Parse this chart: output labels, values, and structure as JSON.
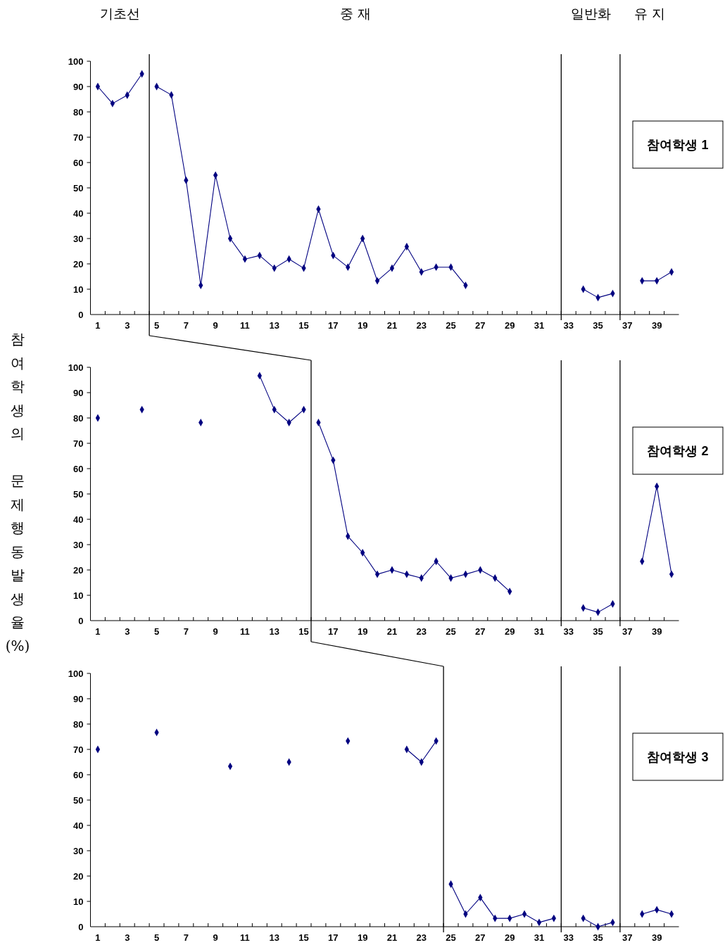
{
  "chart_data": [
    {
      "type": "line",
      "title": "참여학생 1",
      "annotations": [
        "기초선",
        "중 재",
        "일반화",
        "유 지"
      ],
      "xlim": [
        0.5,
        40.5
      ],
      "xticks": [
        1,
        {
          "value": 1.5,
          "label": null
        },
        {
          "value": 2.5,
          "label": null
        },
        3,
        {
          "value": 3.5,
          "label": null
        },
        {
          "value": 4.5,
          "label": null
        },
        5,
        {
          "value": 5.5,
          "label": null
        },
        {
          "value": 6.5,
          "label": null
        },
        7,
        {
          "value": 7.5,
          "label": null
        },
        {
          "value": 8.5,
          "label": null
        },
        9,
        {
          "value": 9.5,
          "label": null
        },
        {
          "value": 10.5,
          "label": null
        },
        11,
        {
          "value": 11.5,
          "label": null
        },
        {
          "value": 12.5,
          "label": null
        },
        13,
        {
          "value": 13.5,
          "label": null
        },
        {
          "value": 14.5,
          "label": null
        },
        15,
        {
          "value": 15.5,
          "label": null
        },
        {
          "value": 16.5,
          "label": null
        },
        17,
        {
          "value": 17.5,
          "label": null
        },
        {
          "value": 18.5,
          "label": null
        },
        19,
        {
          "value": 19.5,
          "label": null
        },
        {
          "value": 20.5,
          "label": null
        },
        21,
        {
          "value": 21.5,
          "label": null
        },
        {
          "value": 22.5,
          "label": null
        },
        23,
        {
          "value": 23.5,
          "label": null
        },
        {
          "value": 24.5,
          "label": null
        },
        25,
        {
          "value": 25.5,
          "label": null
        },
        {
          "value": 26.5,
          "label": null
        },
        27,
        {
          "value": 27.5,
          "label": null
        },
        {
          "value": 28.5,
          "label": null
        },
        29,
        {
          "value": 29.5,
          "label": null
        },
        {
          "value": 30.5,
          "label": null
        },
        31,
        {
          "value": 31.5,
          "label": null
        },
        {
          "value": 32.5,
          "label": null
        },
        33,
        {
          "value": 33.5,
          "label": null
        },
        {
          "value": 34.5,
          "label": null
        },
        35,
        {
          "value": 35.5,
          "label": null
        },
        {
          "value": 36.5,
          "label": null
        },
        37,
        {
          "value": 37.5,
          "label": null
        },
        {
          "value": 38.5,
          "label": null
        },
        39,
        {
          "value": 39.5,
          "label": null
        }
      ],
      "ylim": [
        0,
        100
      ],
      "yticks": [
        0,
        10,
        20,
        30,
        40,
        50,
        60,
        70,
        80,
        90,
        100
      ],
      "marker": "diamond",
      "line_style": "solid",
      "ref_lines": [
        {
          "axis": "x",
          "value": 4.5
        },
        {
          "axis": "x",
          "value": 32.5
        },
        {
          "axis": "x",
          "value": 36.5
        }
      ],
      "series": [
        {
          "color": "#000080",
          "x": [
            1,
            2,
            3,
            4
          ],
          "values": [
            90,
            83.3,
            86.6,
            95
          ]
        },
        {
          "color": "#000080",
          "x": [
            5,
            6,
            7,
            8,
            9,
            10,
            11,
            12,
            13,
            14,
            15,
            16,
            17,
            18,
            19,
            20,
            21,
            22,
            23,
            24,
            25,
            26
          ],
          "values": [
            90,
            86.7,
            53,
            11.5,
            55,
            30,
            21.9,
            23.3,
            18.3,
            21.9,
            18.3,
            41.6,
            23.3,
            18.7,
            30,
            13.3,
            18.3,
            26.8,
            16.8,
            18.7,
            18.7,
            11.5
          ]
        },
        {
          "color": "#000080",
          "x": [
            34,
            35,
            36
          ],
          "values": [
            10,
            6.7,
            8.3
          ]
        },
        {
          "color": "#000080",
          "x": [
            38,
            39,
            40
          ],
          "values": [
            13.3,
            13.3,
            16.8
          ]
        }
      ]
    },
    {
      "type": "line",
      "title": "참여학생 2",
      "ylabel": "참여학생의 문제행동발생율(%)",
      "xlim": [
        0.5,
        40.5
      ],
      "xticks": [
        1,
        {
          "value": 1.5,
          "label": null
        },
        {
          "value": 2.5,
          "label": null
        },
        3,
        {
          "value": 3.5,
          "label": null
        },
        {
          "value": 4.5,
          "label": null
        },
        5,
        {
          "value": 5.5,
          "label": null
        },
        {
          "value": 6.5,
          "label": null
        },
        7,
        {
          "value": 7.5,
          "label": null
        },
        {
          "value": 8.5,
          "label": null
        },
        9,
        {
          "value": 9.5,
          "label": null
        },
        {
          "value": 10.5,
          "label": null
        },
        11,
        {
          "value": 11.5,
          "label": null
        },
        {
          "value": 12.5,
          "label": null
        },
        13,
        {
          "value": 13.5,
          "label": null
        },
        {
          "value": 14.5,
          "label": null
        },
        15,
        {
          "value": 15.5,
          "label": null
        },
        {
          "value": 16.5,
          "label": null
        },
        17,
        {
          "value": 17.5,
          "label": null
        },
        {
          "value": 18.5,
          "label": null
        },
        19,
        {
          "value": 19.5,
          "label": null
        },
        {
          "value": 20.5,
          "label": null
        },
        21,
        {
          "value": 21.5,
          "label": null
        },
        {
          "value": 22.5,
          "label": null
        },
        23,
        {
          "value": 23.5,
          "label": null
        },
        {
          "value": 24.5,
          "label": null
        },
        25,
        {
          "value": 25.5,
          "label": null
        },
        {
          "value": 26.5,
          "label": null
        },
        27,
        {
          "value": 27.5,
          "label": null
        },
        {
          "value": 28.5,
          "label": null
        },
        29,
        {
          "value": 29.5,
          "label": null
        },
        {
          "value": 30.5,
          "label": null
        },
        31,
        {
          "value": 31.5,
          "label": null
        },
        {
          "value": 32.5,
          "label": null
        },
        33,
        {
          "value": 33.5,
          "label": null
        },
        {
          "value": 34.5,
          "label": null
        },
        35,
        {
          "value": 35.5,
          "label": null
        },
        {
          "value": 36.5,
          "label": null
        },
        37,
        {
          "value": 37.5,
          "label": null
        },
        {
          "value": 38.5,
          "label": null
        },
        39,
        {
          "value": 39.5,
          "label": null
        }
      ],
      "ylim": [
        0,
        100
      ],
      "yticks": [
        0,
        10,
        20,
        30,
        40,
        50,
        60,
        70,
        80,
        90,
        100
      ],
      "marker": "diamond",
      "line_style": "solid",
      "ref_lines": [
        {
          "axis": "x",
          "value": 15.5
        },
        {
          "axis": "x",
          "value": 32.5
        },
        {
          "axis": "x",
          "value": 36.5
        }
      ],
      "series": [
        {
          "color": "#000080",
          "x": [
            1,
            2,
            3,
            4,
            5,
            6,
            7,
            8,
            9,
            10,
            11,
            12,
            13,
            14,
            15
          ],
          "values": [
            80,
            null,
            null,
            83.3,
            null,
            null,
            null,
            78.2,
            null,
            null,
            null,
            96.7,
            83.3,
            78.2,
            83.3
          ]
        },
        {
          "color": "#000080",
          "x": [
            16,
            17,
            18,
            19,
            20,
            21,
            22,
            23,
            24,
            25,
            26,
            27,
            28,
            29
          ],
          "values": [
            78.2,
            63.3,
            33.3,
            26.8,
            18.3,
            20,
            18.3,
            16.8,
            23.4,
            16.8,
            18.3,
            20,
            16.8,
            11.5
          ]
        },
        {
          "color": "#000080",
          "x": [
            34,
            35,
            36
          ],
          "values": [
            5,
            3.3,
            6.6
          ]
        },
        {
          "color": "#000080",
          "x": [
            38,
            39,
            40
          ],
          "values": [
            23.4,
            53,
            18.3
          ]
        }
      ]
    },
    {
      "type": "line",
      "title": "참여학생 3",
      "xlim": [
        0.5,
        40.5
      ],
      "xticks": [
        1,
        {
          "value": 1.5,
          "label": null
        },
        {
          "value": 2.5,
          "label": null
        },
        3,
        {
          "value": 3.5,
          "label": null
        },
        {
          "value": 4.5,
          "label": null
        },
        5,
        {
          "value": 5.5,
          "label": null
        },
        {
          "value": 6.5,
          "label": null
        },
        7,
        {
          "value": 7.5,
          "label": null
        },
        {
          "value": 8.5,
          "label": null
        },
        9,
        {
          "value": 9.5,
          "label": null
        },
        {
          "value": 10.5,
          "label": null
        },
        11,
        {
          "value": 11.5,
          "label": null
        },
        {
          "value": 12.5,
          "label": null
        },
        13,
        {
          "value": 13.5,
          "label": null
        },
        {
          "value": 14.5,
          "label": null
        },
        15,
        {
          "value": 15.5,
          "label": null
        },
        {
          "value": 16.5,
          "label": null
        },
        17,
        {
          "value": 17.5,
          "label": null
        },
        {
          "value": 18.5,
          "label": null
        },
        19,
        {
          "value": 19.5,
          "label": null
        },
        {
          "value": 20.5,
          "label": null
        },
        21,
        {
          "value": 21.5,
          "label": null
        },
        {
          "value": 22.5,
          "label": null
        },
        23,
        {
          "value": 23.5,
          "label": null
        },
        {
          "value": 24.5,
          "label": null
        },
        25,
        {
          "value": 25.5,
          "label": null
        },
        {
          "value": 26.5,
          "label": null
        },
        27,
        {
          "value": 27.5,
          "label": null
        },
        {
          "value": 28.5,
          "label": null
        },
        29,
        {
          "value": 29.5,
          "label": null
        },
        {
          "value": 30.5,
          "label": null
        },
        31,
        {
          "value": 31.5,
          "label": null
        },
        {
          "value": 32.5,
          "label": null
        },
        33,
        {
          "value": 33.5,
          "label": null
        },
        {
          "value": 34.5,
          "label": null
        },
        35,
        {
          "value": 35.5,
          "label": null
        },
        {
          "value": 36.5,
          "label": null
        },
        37,
        {
          "value": 37.5,
          "label": null
        },
        {
          "value": 38.5,
          "label": null
        },
        39,
        {
          "value": 39.5,
          "label": null
        }
      ],
      "ylim": [
        0,
        100
      ],
      "yticks": [
        0,
        10,
        20,
        30,
        40,
        50,
        60,
        70,
        80,
        90,
        100
      ],
      "marker": "diamond",
      "line_style": "solid",
      "ref_lines": [
        {
          "axis": "x",
          "value": 24.5
        },
        {
          "axis": "x",
          "value": 32.5
        },
        {
          "axis": "x",
          "value": 36.5
        }
      ],
      "series": [
        {
          "color": "#000080",
          "x": [
            1,
            2,
            3,
            4,
            5,
            6,
            7,
            8,
            9,
            10,
            11,
            12,
            13,
            14,
            15,
            16,
            17,
            18,
            19,
            20,
            21,
            22,
            23,
            24
          ],
          "values": [
            70,
            null,
            null,
            null,
            76.7,
            null,
            null,
            null,
            null,
            63.3,
            null,
            null,
            null,
            65,
            null,
            null,
            null,
            73.3,
            null,
            null,
            null,
            70,
            65,
            73.3
          ]
        },
        {
          "color": "#000080",
          "x": [
            25,
            26,
            27,
            28,
            29,
            30,
            31,
            32
          ],
          "values": [
            16.8,
            5,
            11.5,
            3.3,
            3.3,
            5,
            1.7,
            3.3
          ]
        },
        {
          "color": "#000080",
          "x": [
            34,
            35,
            36
          ],
          "values": [
            3.3,
            0,
            1.7
          ]
        },
        {
          "color": "#000080",
          "x": [
            38,
            39,
            40
          ],
          "values": [
            5,
            6.7,
            5
          ]
        }
      ]
    }
  ]
}
